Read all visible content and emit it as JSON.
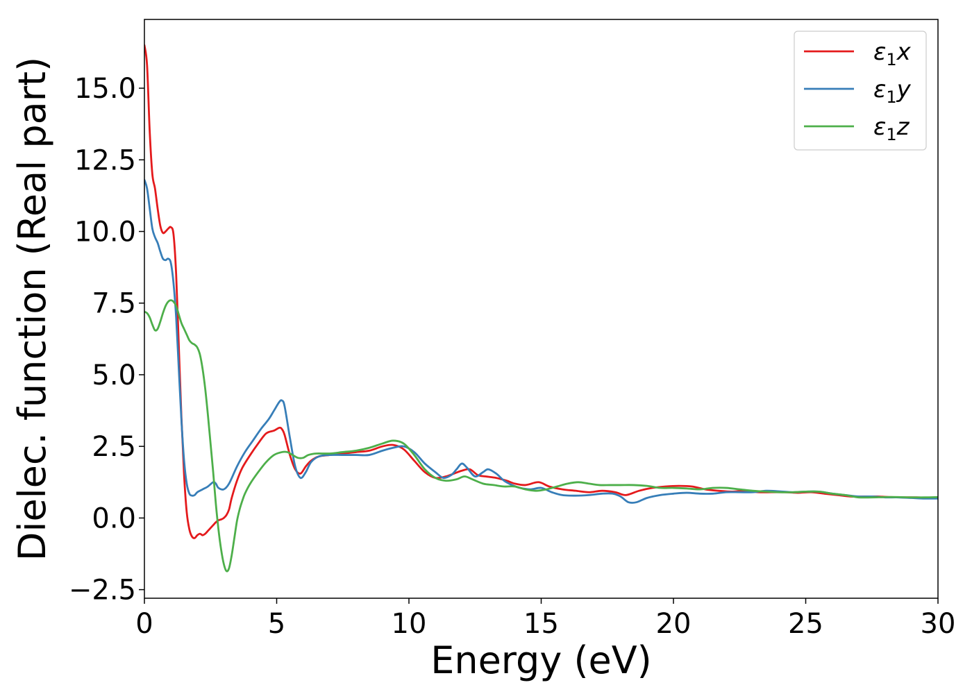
{
  "chart_data": {
    "type": "line",
    "xlabel": "Energy (eV)",
    "ylabel": "Dielec. function (Real part)",
    "xlim": [
      0,
      30
    ],
    "ylim": [
      -2.8,
      17.4
    ],
    "xticks": [
      0,
      5,
      10,
      15,
      20,
      25,
      30
    ],
    "xtick_labels": [
      "0",
      "5",
      "10",
      "15",
      "20",
      "25",
      "30"
    ],
    "yticks": [
      -2.5,
      0,
      2.5,
      5,
      7.5,
      10,
      12.5,
      15
    ],
    "ytick_labels": [
      "−2.5",
      "0.0",
      "2.5",
      "5.0",
      "7.5",
      "10.0",
      "12.5",
      "15.0"
    ],
    "grid": false,
    "legend_position": "top-right",
    "series": [
      {
        "name": "ε₁x",
        "legend_main": "ε",
        "legend_sub": "1",
        "legend_tail": "x",
        "color": "#e41a1c",
        "x": [
          0,
          0.1,
          0.2,
          0.3,
          0.4,
          0.5,
          0.6,
          0.7,
          0.8,
          0.9,
          1.0,
          1.1,
          1.2,
          1.3,
          1.4,
          1.5,
          1.6,
          1.7,
          1.8,
          1.9,
          2.0,
          2.1,
          2.2,
          2.3,
          2.4,
          2.5,
          2.6,
          2.7,
          2.8,
          2.9,
          3.0,
          3.1,
          3.2,
          3.3,
          3.5,
          3.7,
          4.0,
          4.3,
          4.6,
          4.9,
          5.1,
          5.2,
          5.3,
          5.5,
          5.7,
          5.9,
          6.1,
          6.3,
          6.6,
          7.0,
          7.5,
          8.0,
          8.5,
          9.0,
          9.4,
          9.8,
          10.2,
          10.6,
          11.0,
          11.4,
          11.7,
          12.0,
          12.3,
          12.6,
          12.9,
          13.3,
          13.7,
          14.0,
          14.4,
          14.9,
          15.3,
          15.8,
          16.3,
          16.8,
          17.3,
          17.8,
          18.2,
          18.7,
          19.2,
          19.7,
          20.2,
          20.7,
          21.2,
          21.7,
          22.2,
          22.7,
          23.2,
          23.7,
          24.2,
          24.7,
          25.2,
          25.7,
          26.2,
          26.7,
          27.2,
          27.7,
          28.2,
          28.7,
          29.2,
          29.6,
          30.0
        ],
        "values": [
          16.5,
          15.8,
          13.5,
          12.0,
          11.5,
          10.8,
          10.2,
          9.95,
          10.0,
          10.1,
          10.15,
          9.9,
          8.5,
          6.0,
          3.5,
          1.5,
          0.2,
          -0.4,
          -0.65,
          -0.7,
          -0.6,
          -0.55,
          -0.6,
          -0.55,
          -0.45,
          -0.35,
          -0.25,
          -0.15,
          -0.08,
          -0.05,
          0.0,
          0.1,
          0.3,
          0.7,
          1.3,
          1.75,
          2.2,
          2.6,
          2.95,
          3.05,
          3.15,
          3.1,
          2.9,
          2.2,
          1.7,
          1.55,
          1.8,
          2.0,
          2.15,
          2.2,
          2.25,
          2.3,
          2.35,
          2.5,
          2.55,
          2.4,
          2.0,
          1.6,
          1.4,
          1.45,
          1.55,
          1.65,
          1.7,
          1.5,
          1.45,
          1.4,
          1.3,
          1.2,
          1.15,
          1.25,
          1.1,
          1.0,
          0.95,
          0.9,
          0.95,
          0.9,
          0.8,
          0.95,
          1.05,
          1.1,
          1.12,
          1.1,
          1.0,
          0.95,
          0.92,
          0.95,
          0.9,
          0.9,
          0.9,
          0.88,
          0.9,
          0.85,
          0.8,
          0.75,
          0.75,
          0.75,
          0.73,
          0.72,
          0.72,
          0.7,
          0.7
        ]
      },
      {
        "name": "ε₁y",
        "legend_main": "ε",
        "legend_sub": "1",
        "legend_tail": "y",
        "color": "#377eb8",
        "x": [
          0,
          0.1,
          0.2,
          0.3,
          0.4,
          0.5,
          0.6,
          0.7,
          0.8,
          0.9,
          1.0,
          1.1,
          1.2,
          1.3,
          1.4,
          1.5,
          1.6,
          1.7,
          1.8,
          1.9,
          2.0,
          2.2,
          2.4,
          2.6,
          2.7,
          2.8,
          3.0,
          3.2,
          3.5,
          3.8,
          4.1,
          4.4,
          4.7,
          4.9,
          5.1,
          5.2,
          5.3,
          5.5,
          5.7,
          5.9,
          6.1,
          6.3,
          6.6,
          7.0,
          7.5,
          8.0,
          8.5,
          9.0,
          9.4,
          9.8,
          10.2,
          10.6,
          11.0,
          11.3,
          11.6,
          11.8,
          12.0,
          12.2,
          12.5,
          12.8,
          13.0,
          13.3,
          13.6,
          13.9,
          14.2,
          14.6,
          15.0,
          15.4,
          15.8,
          16.3,
          16.8,
          17.3,
          17.7,
          18.0,
          18.3,
          18.6,
          19.0,
          19.5,
          20.0,
          20.5,
          21.0,
          21.5,
          22.0,
          22.5,
          23.0,
          23.5,
          24.0,
          24.5,
          25.0,
          25.5,
          26.0,
          26.5,
          27.0,
          27.5,
          28.0,
          28.5,
          29.0,
          29.5,
          30.0
        ],
        "values": [
          11.8,
          11.5,
          10.8,
          10.1,
          9.8,
          9.6,
          9.3,
          9.05,
          9.0,
          9.05,
          8.9,
          8.2,
          7.0,
          5.2,
          3.4,
          2.0,
          1.2,
          0.85,
          0.78,
          0.8,
          0.9,
          1.0,
          1.1,
          1.25,
          1.2,
          1.05,
          1.0,
          1.2,
          1.8,
          2.3,
          2.7,
          3.1,
          3.45,
          3.75,
          4.05,
          4.1,
          3.9,
          2.8,
          1.8,
          1.4,
          1.6,
          1.95,
          2.15,
          2.2,
          2.2,
          2.2,
          2.2,
          2.35,
          2.45,
          2.5,
          2.3,
          1.9,
          1.6,
          1.4,
          1.5,
          1.7,
          1.9,
          1.75,
          1.45,
          1.6,
          1.7,
          1.55,
          1.3,
          1.15,
          1.05,
          1.0,
          1.05,
          0.9,
          0.8,
          0.78,
          0.8,
          0.85,
          0.85,
          0.75,
          0.55,
          0.55,
          0.7,
          0.8,
          0.85,
          0.88,
          0.85,
          0.85,
          0.9,
          0.9,
          0.9,
          0.95,
          0.93,
          0.9,
          0.92,
          0.92,
          0.85,
          0.8,
          0.75,
          0.75,
          0.72,
          0.72,
          0.7,
          0.68,
          0.68
        ]
      },
      {
        "name": "ε₁z",
        "legend_main": "ε",
        "legend_sub": "1",
        "legend_tail": "z",
        "color": "#4daf4a",
        "x": [
          0,
          0.1,
          0.2,
          0.3,
          0.4,
          0.5,
          0.6,
          0.7,
          0.8,
          0.9,
          1.0,
          1.1,
          1.2,
          1.3,
          1.4,
          1.5,
          1.6,
          1.7,
          1.8,
          1.9,
          2.0,
          2.1,
          2.2,
          2.3,
          2.4,
          2.5,
          2.6,
          2.7,
          2.8,
          2.9,
          3.0,
          3.1,
          3.2,
          3.3,
          3.4,
          3.5,
          3.6,
          3.7,
          3.8,
          4.0,
          4.3,
          4.6,
          4.9,
          5.2,
          5.4,
          5.6,
          5.8,
          6.0,
          6.2,
          6.5,
          7.0,
          7.5,
          8.0,
          8.5,
          9.0,
          9.4,
          9.8,
          10.2,
          10.6,
          11.0,
          11.4,
          11.8,
          12.1,
          12.4,
          12.8,
          13.2,
          13.6,
          14.0,
          14.4,
          14.8,
          15.2,
          15.6,
          16.0,
          16.4,
          16.8,
          17.2,
          17.6,
          18.0,
          18.5,
          19.0,
          19.5,
          20.0,
          20.5,
          21.0,
          21.5,
          22.0,
          22.5,
          23.0,
          23.5,
          24.0,
          24.5,
          25.0,
          25.5,
          26.0,
          26.5,
          27.0,
          27.5,
          28.0,
          28.5,
          29.0,
          29.5,
          30.0
        ],
        "values": [
          7.2,
          7.15,
          7.0,
          6.75,
          6.55,
          6.6,
          6.85,
          7.15,
          7.4,
          7.55,
          7.6,
          7.55,
          7.4,
          7.1,
          6.8,
          6.6,
          6.4,
          6.2,
          6.1,
          6.05,
          5.95,
          5.7,
          5.2,
          4.5,
          3.6,
          2.6,
          1.6,
          0.5,
          -0.4,
          -1.1,
          -1.6,
          -1.85,
          -1.75,
          -1.3,
          -0.7,
          -0.1,
          0.3,
          0.6,
          0.85,
          1.2,
          1.6,
          1.95,
          2.2,
          2.3,
          2.3,
          2.2,
          2.1,
          2.1,
          2.2,
          2.25,
          2.25,
          2.3,
          2.35,
          2.45,
          2.6,
          2.7,
          2.6,
          2.2,
          1.7,
          1.4,
          1.3,
          1.35,
          1.45,
          1.35,
          1.2,
          1.15,
          1.1,
          1.1,
          1.0,
          0.95,
          1.0,
          1.1,
          1.2,
          1.25,
          1.2,
          1.15,
          1.15,
          1.15,
          1.15,
          1.12,
          1.05,
          1.05,
          1.03,
          1.0,
          1.05,
          1.05,
          1.0,
          0.95,
          0.92,
          0.9,
          0.9,
          0.92,
          0.92,
          0.85,
          0.8,
          0.72,
          0.72,
          0.73,
          0.73,
          0.72,
          0.72,
          0.73
        ]
      }
    ]
  }
}
